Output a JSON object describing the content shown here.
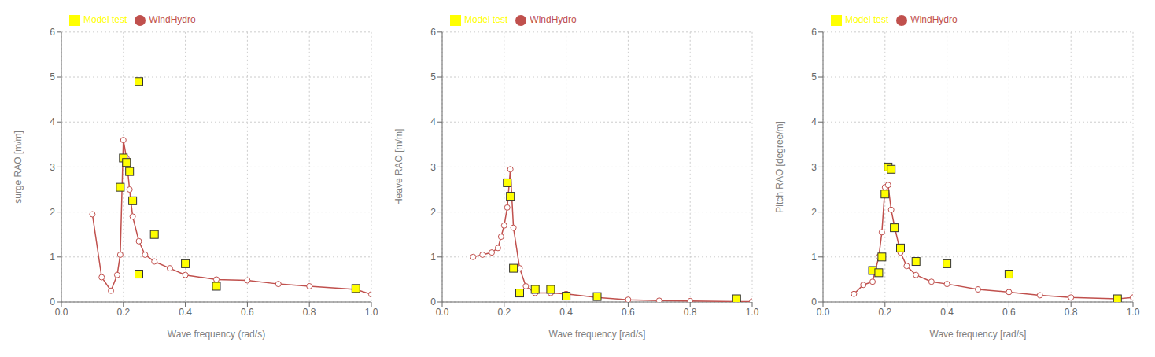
{
  "chart_data": [
    {
      "type": "line",
      "xlabel": "Wave frequency (rad/s)",
      "ylabel": "surge RAO [m/m]",
      "xlim": [
        0.0,
        1.0
      ],
      "ylim": [
        0,
        6
      ],
      "xticks": [
        {
          "value": 0.0,
          "label": "0.0"
        },
        0.2,
        0.4,
        0.6,
        0.8,
        {
          "value": 1.0,
          "label": "1.0"
        }
      ],
      "yticks": [
        0,
        1,
        2,
        3,
        4,
        5,
        6
      ],
      "grid": true,
      "legend": "top",
      "series": [
        {
          "name": "WindHydro",
          "type": "line",
          "marker": "circle",
          "line_style": "solid",
          "color": "#c0504d",
          "x": [
            0.1,
            0.13,
            0.16,
            0.18,
            0.19,
            0.2,
            0.21,
            0.22,
            0.23,
            0.25,
            0.27,
            0.3,
            0.35,
            0.4,
            0.5,
            0.6,
            0.7,
            0.8,
            0.95,
            1.0
          ],
          "values": [
            1.95,
            0.55,
            0.25,
            0.6,
            1.05,
            3.6,
            3.2,
            2.5,
            1.9,
            1.35,
            1.05,
            0.9,
            0.75,
            0.6,
            0.5,
            0.48,
            0.4,
            0.35,
            0.28,
            0.17
          ]
        },
        {
          "name": "Model test",
          "type": "scatter",
          "marker": "square",
          "color": "#ffff00",
          "x": [
            0.19,
            0.2,
            0.21,
            0.22,
            0.23,
            0.25,
            0.25,
            0.3,
            0.4,
            0.5,
            0.95
          ],
          "values": [
            2.55,
            3.2,
            3.1,
            2.9,
            2.25,
            0.62,
            4.9,
            1.5,
            0.85,
            0.35,
            0.3
          ]
        }
      ]
    },
    {
      "type": "line",
      "xlabel": "Wave frequency [rad/s]",
      "ylabel": "Heave RAO [m/m]",
      "xlim": [
        0.0,
        1.0
      ],
      "ylim": [
        0,
        6
      ],
      "xticks": [
        {
          "value": 0.0,
          "label": "0.0"
        },
        0.2,
        0.4,
        0.6,
        0.8,
        {
          "value": 1.0,
          "label": "1.0"
        }
      ],
      "yticks": [
        0,
        1,
        2,
        3,
        4,
        5,
        6
      ],
      "grid": true,
      "legend": "top",
      "series": [
        {
          "name": "WindHydro",
          "type": "line",
          "marker": "circle",
          "line_style": "solid",
          "color": "#c0504d",
          "x": [
            0.1,
            0.13,
            0.16,
            0.18,
            0.19,
            0.2,
            0.21,
            0.22,
            0.23,
            0.25,
            0.27,
            0.3,
            0.35,
            0.4,
            0.5,
            0.6,
            0.7,
            0.8,
            0.95,
            1.0
          ],
          "values": [
            1.0,
            1.05,
            1.1,
            1.2,
            1.45,
            1.7,
            2.1,
            2.95,
            1.65,
            0.75,
            0.35,
            0.2,
            0.2,
            0.18,
            0.1,
            0.05,
            0.03,
            0.02,
            0.01,
            0.01
          ]
        },
        {
          "name": "Model test",
          "type": "scatter",
          "marker": "square",
          "color": "#ffff00",
          "x": [
            0.21,
            0.22,
            0.23,
            0.25,
            0.3,
            0.35,
            0.4,
            0.5,
            0.95
          ],
          "values": [
            2.65,
            2.35,
            0.75,
            0.2,
            0.28,
            0.28,
            0.13,
            0.12,
            0.07
          ]
        }
      ]
    },
    {
      "type": "line",
      "xlabel": "Wave frequency [rad/s]",
      "ylabel": "Pitch RAO [degree/m]",
      "xlim": [
        0.0,
        1.0
      ],
      "ylim": [
        0,
        6
      ],
      "xticks": [
        {
          "value": 0.0,
          "label": "0.0"
        },
        0.2,
        0.4,
        0.6,
        0.8,
        {
          "value": 1.0,
          "label": "1.0"
        }
      ],
      "yticks": [
        0,
        1,
        2,
        3,
        4,
        5,
        6
      ],
      "grid": true,
      "legend": "top",
      "series": [
        {
          "name": "WindHydro",
          "type": "line",
          "marker": "circle",
          "line_style": "solid",
          "color": "#c0504d",
          "x": [
            0.1,
            0.13,
            0.16,
            0.18,
            0.19,
            0.2,
            0.21,
            0.22,
            0.23,
            0.25,
            0.27,
            0.3,
            0.35,
            0.4,
            0.5,
            0.6,
            0.7,
            0.8,
            0.95,
            1.0
          ],
          "values": [
            0.18,
            0.38,
            0.45,
            1.0,
            1.55,
            2.55,
            2.6,
            2.05,
            1.7,
            1.1,
            0.8,
            0.6,
            0.45,
            0.4,
            0.28,
            0.22,
            0.15,
            0.1,
            0.07,
            0.1
          ]
        },
        {
          "name": "Model test",
          "type": "scatter",
          "marker": "square",
          "color": "#ffff00",
          "x": [
            0.16,
            0.18,
            0.19,
            0.2,
            0.21,
            0.22,
            0.23,
            0.25,
            0.3,
            0.4,
            0.6,
            0.95
          ],
          "values": [
            0.7,
            0.65,
            1.0,
            2.4,
            3.0,
            2.95,
            1.65,
            1.2,
            0.9,
            0.85,
            0.62,
            0.07
          ]
        }
      ]
    }
  ]
}
